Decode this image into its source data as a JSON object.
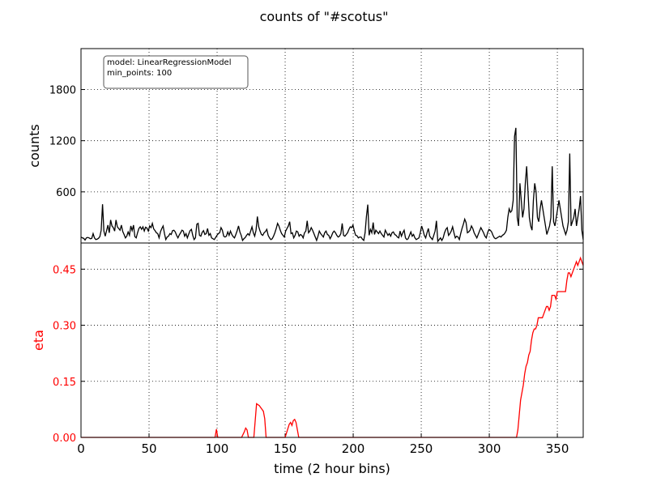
{
  "chart_data": [
    {
      "type": "line",
      "title": "counts of \"#scotus\"",
      "ylabel": "counts",
      "xlim": [
        0,
        369
      ],
      "ylim": [
        0,
        2280
      ],
      "yticks": [
        600,
        1200,
        1800
      ],
      "grid": true,
      "line_color": "#000000",
      "annotation": [
        "model: LinearRegressionModel",
        "min_points: 100"
      ],
      "series": [
        {
          "values": [
            70,
            60,
            55,
            35,
            60,
            65,
            60,
            50,
            55,
            110,
            60,
            40,
            45,
            55,
            75,
            150,
            455,
            140,
            80,
            145,
            210,
            120,
            270,
            200,
            180,
            140,
            270,
            190,
            170,
            150,
            210,
            135,
            100,
            60,
            80,
            130,
            90,
            200,
            145,
            210,
            75,
            60,
            120,
            170,
            190,
            160,
            190,
            140,
            185,
            175,
            140,
            200,
            180,
            230,
            165,
            145,
            120,
            110,
            60,
            130,
            170,
            200,
            110,
            40,
            70,
            80,
            110,
            100,
            145,
            150,
            130,
            90,
            60,
            95,
            120,
            150,
            140,
            80,
            110,
            60,
            105,
            145,
            160,
            90,
            40,
            60,
            220,
            230,
            90,
            80,
            125,
            145,
            100,
            110,
            170,
            90,
            110,
            60,
            50,
            40,
            65,
            90,
            110,
            120,
            180,
            150,
            80,
            70,
            80,
            130,
            90,
            140,
            100,
            75,
            60,
            100,
            145,
            200,
            130,
            90,
            30,
            50,
            65,
            90,
            110,
            90,
            140,
            190,
            120,
            80,
            150,
            310,
            190,
            140,
            100,
            90,
            120,
            135,
            160,
            90,
            60,
            40,
            50,
            80,
            120,
            170,
            230,
            200,
            150,
            110,
            90,
            70,
            140,
            170,
            200,
            250,
            110,
            120,
            60,
            90,
            140,
            130,
            80,
            100,
            90,
            60,
            120,
            140,
            260,
            120,
            140,
            180,
            150,
            110,
            70,
            30,
            80,
            140,
            110,
            90,
            70,
            120,
            140,
            100,
            90,
            50,
            80,
            120,
            140,
            120,
            90,
            70,
            80,
            110,
            230,
            90,
            80,
            100,
            120,
            160,
            190,
            180,
            210,
            140,
            90,
            85,
            60,
            70,
            70,
            45,
            30,
            120,
            310,
            450,
            90,
            160,
            120,
            240,
            100,
            150,
            130,
            110,
            140,
            110,
            90,
            70,
            150,
            120,
            90,
            110,
            80,
            120,
            130,
            100,
            90,
            70,
            60,
            140,
            80,
            120,
            150,
            60,
            40,
            50,
            90,
            130,
            80,
            100,
            60,
            40,
            50,
            60,
            120,
            200,
            150,
            90,
            60,
            120,
            170,
            80,
            60,
            40,
            90,
            140,
            260,
            20,
            40,
            60,
            30,
            60,
            120,
            160,
            180,
            90,
            110,
            140,
            190,
            120,
            60,
            80,
            70,
            40,
            110,
            170,
            220,
            280,
            240,
            120,
            130,
            150,
            200,
            170,
            120,
            90,
            60,
            100,
            140,
            180,
            150,
            120,
            80,
            60,
            120,
            160,
            150,
            130,
            90,
            60,
            50,
            60,
            70,
            80,
            70,
            90,
            100,
            120,
            150,
            300,
            400,
            360,
            380,
            500,
            1250,
            1350,
            300,
            200,
            700,
            500,
            300,
            400,
            700,
            900,
            600,
            300,
            200,
            150,
            500,
            700,
            600,
            300,
            250,
            400,
            500,
            400,
            300,
            200,
            100,
            150,
            200,
            300,
            900,
            250,
            200,
            300,
            400,
            500,
            400,
            300,
            200,
            150,
            100,
            150,
            250,
            1050,
            200,
            250,
            300,
            400,
            200,
            300,
            400,
            550,
            150,
            40
          ]
        }
      ]
    },
    {
      "type": "line",
      "xlabel": "time (2 hour bins)",
      "ylabel": "eta",
      "xlim": [
        0,
        369
      ],
      "ylim": [
        0,
        0.52
      ],
      "xticks": [
        0,
        50,
        100,
        150,
        200,
        250,
        300,
        350
      ],
      "yticks": [
        0.0,
        0.15,
        0.3,
        0.45
      ],
      "ytick_labels": [
        "0.00",
        "0.15",
        "0.30",
        "0.45"
      ],
      "grid": true,
      "line_color": "#ff0000",
      "series": [
        {
          "points": [
            [
              0,
              0
            ],
            [
              98.5,
              0
            ],
            [
              99.5,
              0.022
            ],
            [
              100.5,
              0
            ],
            [
              118,
              0
            ],
            [
              120,
              0.015
            ],
            [
              121,
              0.025
            ],
            [
              122,
              0.02
            ],
            [
              123,
              0
            ],
            [
              127,
              0
            ],
            [
              129,
              0.09
            ],
            [
              131,
              0.085
            ],
            [
              133,
              0.075
            ],
            [
              134,
              0.07
            ],
            [
              135,
              0.05
            ],
            [
              136,
              0
            ],
            [
              150,
              0
            ],
            [
              153,
              0.035
            ],
            [
              154,
              0.04
            ],
            [
              155,
              0.032
            ],
            [
              156,
              0.045
            ],
            [
              157,
              0.048
            ],
            [
              158,
              0.04
            ],
            [
              159,
              0.02
            ],
            [
              160,
              0
            ],
            [
              320,
              0
            ],
            [
              321,
              0.02
            ],
            [
              322,
              0.06
            ],
            [
              323,
              0.1
            ],
            [
              324,
              0.12
            ],
            [
              325,
              0.14
            ],
            [
              326,
              0.17
            ],
            [
              327,
              0.19
            ],
            [
              328,
              0.2
            ],
            [
              329,
              0.22
            ],
            [
              330,
              0.23
            ],
            [
              331,
              0.26
            ],
            [
              332,
              0.28
            ],
            [
              333,
              0.29
            ],
            [
              334,
              0.29
            ],
            [
              335,
              0.3
            ],
            [
              336,
              0.32
            ],
            [
              337,
              0.32
            ],
            [
              338,
              0.32
            ],
            [
              339,
              0.32
            ],
            [
              340,
              0.33
            ],
            [
              341,
              0.34
            ],
            [
              342,
              0.35
            ],
            [
              343,
              0.35
            ],
            [
              344,
              0.34
            ],
            [
              345,
              0.35
            ],
            [
              346,
              0.38
            ],
            [
              347,
              0.38
            ],
            [
              348,
              0.38
            ],
            [
              349,
              0.37
            ],
            [
              350,
              0.39
            ],
            [
              351,
              0.39
            ],
            [
              352,
              0.39
            ],
            [
              353,
              0.39
            ],
            [
              354,
              0.39
            ],
            [
              355,
              0.39
            ],
            [
              356,
              0.39
            ],
            [
              357,
              0.42
            ],
            [
              358,
              0.44
            ],
            [
              359,
              0.44
            ],
            [
              360,
              0.43
            ],
            [
              361,
              0.44
            ],
            [
              362,
              0.45
            ],
            [
              363,
              0.46
            ],
            [
              364,
              0.47
            ],
            [
              365,
              0.46
            ],
            [
              366,
              0.47
            ],
            [
              367,
              0.48
            ],
            [
              368,
              0.47
            ],
            [
              369,
              0.46
            ]
          ]
        }
      ]
    }
  ]
}
